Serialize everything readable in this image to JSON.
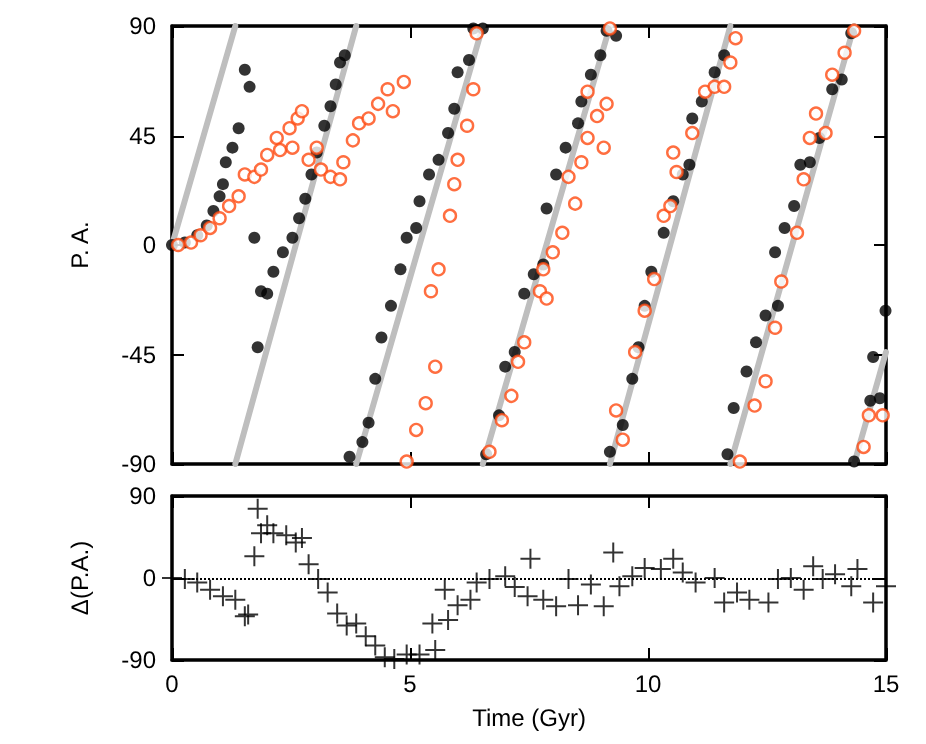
{
  "chart_data": [
    {
      "type": "scatter",
      "ylabel": "P. A.",
      "xlim": [
        0,
        15
      ],
      "xticks": [
        0,
        5,
        10,
        15
      ],
      "ylim": [
        -90,
        90
      ],
      "yticks": [
        -90,
        -45,
        0,
        45,
        90
      ],
      "tick_labels": "y",
      "grid": false,
      "series": [
        {
          "type": "line",
          "color": "#bebebe",
          "line_style": "solid",
          "marker": "none",
          "x": [
            0,
            1.33
          ],
          "values": [
            0,
            90
          ]
        },
        {
          "type": "line",
          "color": "#bebebe",
          "line_style": "solid",
          "marker": "none",
          "x": [
            1.33,
            3.87
          ],
          "values": [
            -90,
            90
          ]
        },
        {
          "type": "line",
          "color": "#bebebe",
          "line_style": "solid",
          "marker": "none",
          "x": [
            3.87,
            6.53
          ],
          "values": [
            -90,
            90
          ]
        },
        {
          "type": "line",
          "color": "#bebebe",
          "line_style": "solid",
          "marker": "none",
          "x": [
            6.53,
            9.2
          ],
          "values": [
            -90,
            90
          ]
        },
        {
          "type": "line",
          "color": "#bebebe",
          "line_style": "solid",
          "marker": "none",
          "x": [
            9.2,
            11.73
          ],
          "values": [
            -90,
            90
          ]
        },
        {
          "type": "line",
          "color": "#bebebe",
          "line_style": "solid",
          "marker": "none",
          "x": [
            11.73,
            14.33
          ],
          "values": [
            -90,
            90
          ]
        },
        {
          "type": "line",
          "color": "#bebebe",
          "line_style": "solid",
          "marker": "none",
          "x": [
            14.33,
            15
          ],
          "values": [
            -90,
            -44
          ]
        },
        {
          "color": "#000000",
          "marker": "circle",
          "x": [
            0,
            0.27,
            0.53,
            0.73,
            0.87,
            1.0,
            1.07,
            1.13,
            1.27,
            1.4,
            1.53,
            1.63,
            1.73,
            1.8,
            1.87,
            2.0,
            2.13,
            2.33,
            2.53,
            2.67,
            2.8,
            2.93,
            3.04,
            3.2,
            3.33,
            3.44,
            3.53,
            3.63,
            3.73,
            4.0,
            4.13,
            4.27,
            4.4,
            4.6,
            4.8,
            4.93,
            5.13,
            5.2,
            5.4,
            5.6,
            5.8,
            5.93,
            6.0,
            6.24,
            6.33,
            6.53,
            6.6,
            6.87,
            7.0,
            7.2,
            7.4,
            7.6,
            7.8,
            7.87,
            8.07,
            8.27,
            8.53,
            8.6,
            8.8,
            9.0,
            9.13,
            9.33,
            9.2,
            9.47,
            9.67,
            9.8,
            9.93,
            10.07,
            10.33,
            10.53,
            10.73,
            10.87,
            10.93,
            11.13,
            11.4,
            11.6,
            11.67,
            11.8,
            12.07,
            12.27,
            12.47,
            12.67,
            12.73,
            12.87,
            13.07,
            13.2,
            13.4,
            13.6,
            13.87,
            14.07,
            14.27,
            14.33,
            14.67,
            14.73,
            14.87,
            14.99
          ],
          "values": [
            0,
            1,
            4,
            8,
            14,
            20,
            25,
            34,
            40,
            48,
            72,
            65,
            3,
            -42,
            -19,
            -20,
            -11,
            -3,
            3,
            11,
            19,
            29,
            38,
            49,
            57,
            66,
            75,
            78,
            -87,
            -81,
            -73,
            -55,
            -38,
            -25,
            -10,
            3,
            7,
            18,
            29,
            35,
            46,
            56,
            71,
            76,
            89,
            89,
            -86,
            -70,
            -50,
            -44,
            -20,
            -12,
            -8,
            15,
            29,
            40,
            50,
            59,
            70,
            78,
            88,
            86,
            -85,
            -74,
            -55,
            -42,
            -25,
            -11,
            5,
            18,
            29,
            33,
            52,
            59,
            71,
            78,
            -86,
            -67,
            -52,
            -40,
            -29,
            -3,
            -25,
            7,
            16,
            33,
            34,
            44,
            64,
            68,
            87,
            -89,
            -64,
            -46,
            -63,
            -27
          ]
        },
        {
          "color": "#ff4a10",
          "marker": "circle",
          "x": [
            0.13,
            0.4,
            0.6,
            0.8,
            1.0,
            1.2,
            1.4,
            1.53,
            1.73,
            1.87,
            2.0,
            2.2,
            2.27,
            2.47,
            2.53,
            2.64,
            2.73,
            2.87,
            3.04,
            3.13,
            3.33,
            3.53,
            3.6,
            3.8,
            3.93,
            4.13,
            4.33,
            4.53,
            4.64,
            4.87,
            4.93,
            5.13,
            5.33,
            5.53,
            5.44,
            5.6,
            5.84,
            5.93,
            6.0,
            6.2,
            6.33,
            6.4,
            6.67,
            6.93,
            7.13,
            7.27,
            7.4,
            7.73,
            7.87,
            7.8,
            8.0,
            8.2,
            8.47,
            8.33,
            8.6,
            8.73,
            8.93,
            8.73,
            9.07,
            9.13,
            9.2,
            9.33,
            9.47,
            9.73,
            9.93,
            10.13,
            10.33,
            10.47,
            10.6,
            10.53,
            10.93,
            11.2,
            11.4,
            11.6,
            11.73,
            11.84,
            11.93,
            12.24,
            12.47,
            12.67,
            12.8,
            13.13,
            13.27,
            13.4,
            13.53,
            13.73,
            13.87,
            14.13,
            14.33,
            14.53,
            14.64,
            14.93
          ],
          "values": [
            0,
            1,
            4,
            7,
            11,
            16,
            20,
            29,
            28,
            31,
            37,
            44,
            39,
            48,
            40,
            52,
            55,
            35,
            40,
            31,
            28,
            27,
            34,
            43,
            50,
            52,
            58,
            64,
            55,
            67,
            -89,
            -76,
            -65,
            -50,
            -19,
            -10,
            12,
            25,
            35,
            49,
            64,
            87,
            -85,
            -72,
            -62,
            -48,
            -40,
            -19,
            -22,
            -10,
            -3,
            5,
            17,
            28,
            34,
            44,
            53,
            63,
            40,
            58,
            89,
            -68,
            -80,
            -44,
            -27,
            -14,
            12,
            16,
            30,
            38,
            46,
            63,
            65,
            65,
            75,
            85,
            -89,
            -66,
            -56,
            -34,
            -15,
            5,
            27,
            44,
            54,
            46,
            70,
            79,
            88,
            -83,
            -70,
            -70
          ]
        }
      ]
    },
    {
      "type": "scatter",
      "xlabel": "Time (Gyr)",
      "ylabel": "Δ(P.A.)",
      "xlim": [
        0,
        15
      ],
      "xticks": [
        0,
        5,
        10,
        15
      ],
      "ylim": [
        -90,
        90
      ],
      "yticks": [
        -90,
        0,
        90
      ],
      "grid": false,
      "marker": "cross",
      "ref_lines": [
        {
          "axis": "y",
          "value": 0,
          "color": "#000000",
          "line_style": "dotted"
        }
      ],
      "series": [
        {
          "color": "#000000",
          "x": [
            0,
            0.27,
            0.53,
            0.8,
            1.07,
            1.33,
            1.53,
            1.6,
            1.73,
            1.8,
            1.87,
            2.0,
            2.13,
            2.4,
            2.6,
            2.73,
            2.87,
            3.07,
            3.27,
            3.47,
            3.67,
            3.87,
            4.07,
            4.27,
            4.47,
            4.67,
            4.93,
            5.2,
            5.53,
            5.47,
            5.8,
            5.73,
            6.0,
            6.27,
            6.4,
            6.67,
            7.0,
            7.2,
            7.53,
            7.47,
            7.8,
            8.07,
            8.33,
            8.53,
            8.8,
            9.07,
            9.27,
            9.4,
            9.67,
            9.93,
            10.27,
            10.53,
            10.73,
            11.0,
            11.4,
            11.6,
            11.87,
            12.13,
            12.53,
            12.73,
            13.0,
            13.27,
            13.47,
            13.67,
            13.93,
            14.27,
            14.4,
            14.73,
            15.0
          ],
          "values": [
            0,
            -1,
            -5,
            -13,
            -20,
            -24,
            -42,
            -40,
            24,
            76,
            49,
            58,
            49,
            47,
            39,
            44,
            15,
            -1,
            -16,
            -39,
            -52,
            -50,
            -64,
            -74,
            -87,
            -89,
            -84,
            -84,
            -79,
            -50,
            -46,
            -13,
            -30,
            -24,
            -5,
            -1,
            2,
            -10,
            21,
            -20,
            -24,
            -31,
            -1,
            -30,
            -7,
            -31,
            28,
            -9,
            2,
            11,
            10,
            21,
            6,
            -5,
            0,
            -27,
            -16,
            -24,
            -27,
            -1,
            0,
            -13,
            13,
            -1,
            4,
            -9,
            10,
            -27,
            -9
          ]
        }
      ]
    }
  ]
}
